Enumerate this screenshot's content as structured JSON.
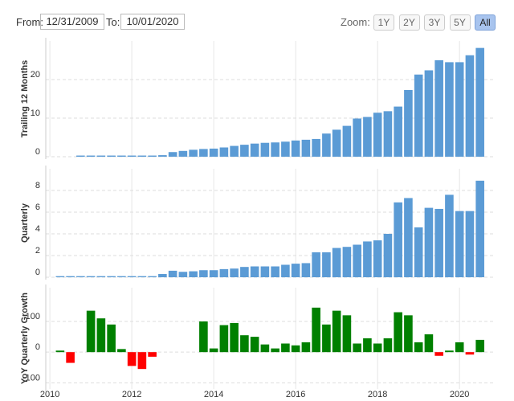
{
  "controls": {
    "from_label": "From:",
    "from_date": "12/31/2009",
    "to_label": "To:",
    "to_date": "10/01/2020",
    "zoom_label": "Zoom:",
    "zoom_buttons": [
      {
        "label": "1Y"
      },
      {
        "label": "2Y"
      },
      {
        "label": "3Y"
      },
      {
        "label": "5Y"
      },
      {
        "label": "All",
        "selected": true
      }
    ]
  },
  "chart_data": [
    {
      "type": "bar",
      "ylabel": "Trailing 12 Months",
      "color": "#5b9bd5",
      "x": [
        2010.25,
        2010.5,
        2010.75,
        2011,
        2011.25,
        2011.5,
        2011.75,
        2012,
        2012.25,
        2012.5,
        2012.75,
        2013,
        2013.25,
        2013.5,
        2013.75,
        2014,
        2014.25,
        2014.5,
        2014.75,
        2015,
        2015.25,
        2015.5,
        2015.75,
        2016,
        2016.25,
        2016.5,
        2016.75,
        2017,
        2017.25,
        2017.5,
        2017.75,
        2018,
        2018.25,
        2018.5,
        2018.75,
        2019,
        2019.25,
        2019.5,
        2019.75,
        2020,
        2020.25,
        2020.5
      ],
      "values": [
        null,
        null,
        0.3,
        0.3,
        0.3,
        0.3,
        0.3,
        0.3,
        0.3,
        0.3,
        0.4,
        1.2,
        1.5,
        1.8,
        2.0,
        2.1,
        2.4,
        2.8,
        3.1,
        3.4,
        3.6,
        3.7,
        3.9,
        4.2,
        4.4,
        4.6,
        6.0,
        7.0,
        8.0,
        9.9,
        10.3,
        11.4,
        11.8,
        13.0,
        17.3,
        21.3,
        22.4,
        25.0,
        24.5,
        24.5,
        26.3,
        28.2
      ],
      "xlim": [
        2009.9,
        2020.82
      ],
      "ylim": [
        0,
        30
      ],
      "yticks": [
        0,
        10,
        20
      ],
      "grid": true
    },
    {
      "type": "bar",
      "ylabel": "Quarterly",
      "color": "#5b9bd5",
      "x": [
        2010.25,
        2010.5,
        2010.75,
        2011,
        2011.25,
        2011.5,
        2011.75,
        2012,
        2012.25,
        2012.5,
        2012.75,
        2013,
        2013.25,
        2013.5,
        2013.75,
        2014,
        2014.25,
        2014.5,
        2014.75,
        2015,
        2015.25,
        2015.5,
        2015.75,
        2016,
        2016.25,
        2016.5,
        2016.75,
        2017,
        2017.25,
        2017.5,
        2017.75,
        2018,
        2018.25,
        2018.5,
        2018.75,
        2019,
        2019.25,
        2019.5,
        2019.75,
        2020,
        2020.25,
        2020.5
      ],
      "values": [
        0.1,
        0.1,
        0.1,
        0.1,
        0.1,
        0.1,
        0.1,
        0.1,
        0.1,
        0.1,
        0.3,
        0.6,
        0.5,
        0.55,
        0.65,
        0.65,
        0.75,
        0.8,
        0.95,
        1.0,
        1.0,
        1.0,
        1.15,
        1.25,
        1.3,
        2.3,
        2.3,
        2.7,
        2.8,
        3.0,
        3.3,
        3.4,
        4.0,
        6.9,
        7.3,
        4.6,
        6.4,
        6.3,
        7.6,
        6.1,
        6.1,
        8.9
      ],
      "xlim": [
        2009.9,
        2020.82
      ],
      "ylim": [
        0,
        10
      ],
      "yticks": [
        0,
        2,
        4,
        6,
        8
      ],
      "grid": true
    },
    {
      "type": "bar",
      "ylabel": "YoY Quarterly Growth",
      "positive_color": "#008000",
      "negative_color": "#ff0000",
      "x": [
        2010.25,
        2010.5,
        2010.75,
        2011,
        2011.25,
        2011.5,
        2011.75,
        2012,
        2012.25,
        2012.5,
        2012.75,
        2013,
        2013.25,
        2013.5,
        2013.75,
        2014,
        2014.25,
        2014.5,
        2014.75,
        2015,
        2015.25,
        2015.5,
        2015.75,
        2016,
        2016.25,
        2016.5,
        2016.75,
        2017,
        2017.25,
        2017.5,
        2017.75,
        2018,
        2018.25,
        2018.5,
        2018.75,
        2019,
        2019.25,
        2019.5,
        2019.75,
        2020,
        2020.25,
        2020.5
      ],
      "values": [
        5,
        -35,
        null,
        135,
        110,
        90,
        10,
        -45,
        -55,
        -15,
        null,
        null,
        null,
        null,
        100,
        12,
        88,
        95,
        55,
        50,
        25,
        12,
        28,
        22,
        32,
        145,
        90,
        135,
        120,
        28,
        45,
        28,
        45,
        130,
        120,
        32,
        58,
        -12,
        5,
        32,
        -8,
        40
      ],
      "xlim": [
        2009.9,
        2020.82
      ],
      "ylim": [
        -120,
        210
      ],
      "yticks": [
        -100,
        0,
        100
      ],
      "xticks": [
        2010,
        2012,
        2014,
        2016,
        2018,
        2020
      ],
      "grid": true
    }
  ]
}
